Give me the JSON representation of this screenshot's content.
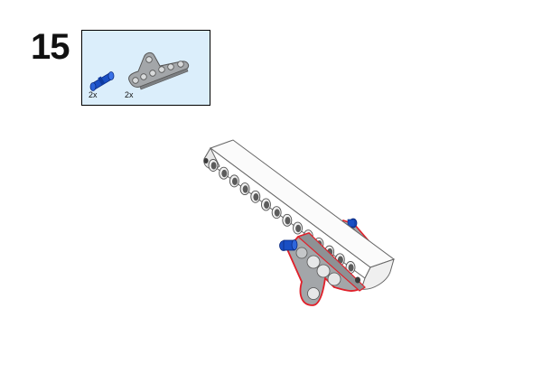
{
  "step": {
    "number": "15"
  },
  "parts_list": {
    "items": [
      {
        "part": "blue-pin-icon",
        "color": "#1a4fc4",
        "quantity": "2x"
      },
      {
        "part": "gray-triangle-beam-icon",
        "color": "#a3a6a9",
        "quantity": "2x"
      }
    ]
  },
  "assembly": {
    "highlight_color": "#e0202a",
    "beam_color": "#f4f4f4",
    "added_part_color": "#a3a6a9",
    "pin_color": "#1a4fc4"
  }
}
